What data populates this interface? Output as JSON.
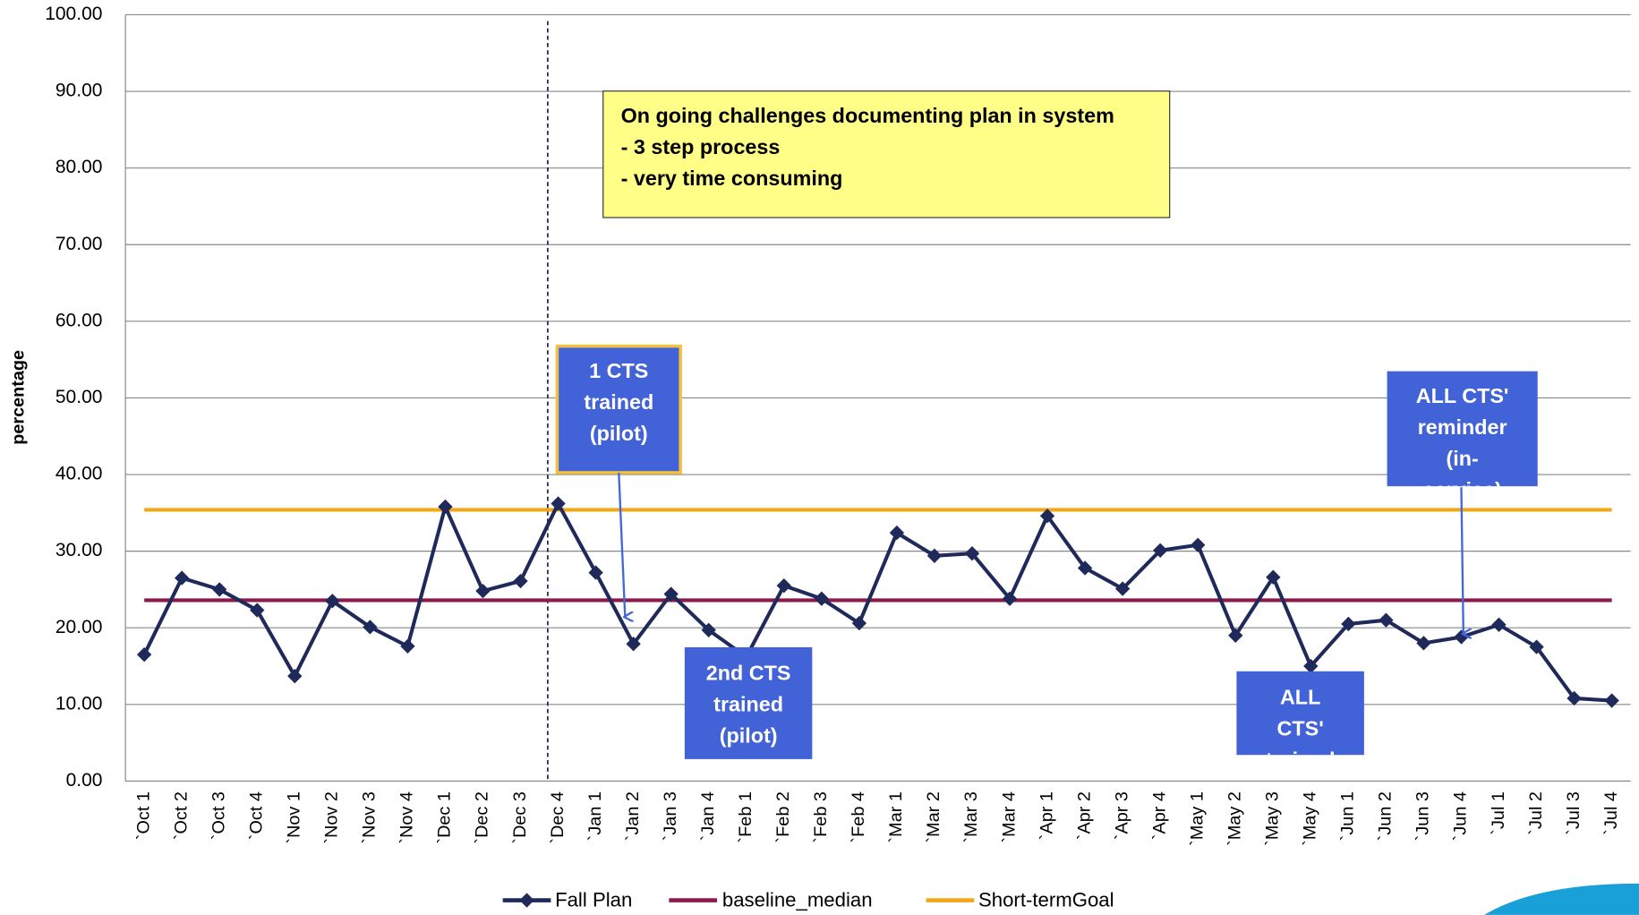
{
  "chart_data": {
    "type": "line",
    "y_label": "percentage",
    "categories": [
      "`Oct 1",
      "`Oct 2",
      "`Oct 3",
      "`Oct 4",
      "`Nov 1",
      "`Nov 2",
      "`Nov 3",
      "`Nov 4",
      "`Dec 1",
      "`Dec 2",
      "`Dec 3",
      "`Dec 4",
      "`Jan 1",
      "`Jan 2",
      "`Jan 3",
      "`Jan 4",
      "`Feb 1",
      "`Feb 2",
      "`Feb 3",
      "`Feb 4",
      "`Mar 1",
      "`Mar 2",
      "`Mar 3",
      "`Mar 4",
      "`Apr 1",
      "`Apr 2",
      "`Apr 3",
      "`Apr 4",
      "`May 1",
      "`May 2",
      "`May 3",
      "`May 4",
      "`Jun 1",
      "`Jun 2",
      "`Jun 3",
      "`Jun 4",
      "`Jul 1",
      "`Jul 2",
      "`Jul 3",
      "`Jul 4"
    ],
    "series": [
      {
        "name": "Fall Plan",
        "color": "#1f2a5a",
        "marker": "diamond",
        "values": [
          16.5,
          26.5,
          25,
          22.3,
          13.7,
          23.5,
          20.1,
          17.6,
          35.8,
          24.8,
          26.1,
          36.2,
          27.2,
          17.9,
          24.4,
          19.7,
          16.2,
          25.5,
          23.8,
          20.6,
          32.4,
          29.4,
          29.7,
          23.8,
          34.6,
          27.8,
          25.1,
          30.1,
          30.8,
          19.0,
          26.6,
          15.0,
          20.5,
          21.0,
          18.0,
          18.8,
          20.4,
          17.5,
          10.8,
          10.5
        ]
      },
      {
        "name": "baseline_median",
        "color": "#8b1a4a",
        "values": [
          23.6,
          23.6,
          23.6,
          23.6,
          23.6,
          23.6,
          23.6,
          23.6,
          23.6,
          23.6,
          23.6,
          23.6,
          23.6,
          23.6,
          23.6,
          23.6,
          23.6,
          23.6,
          23.6,
          23.6,
          23.6,
          23.6,
          23.6,
          23.6,
          23.6,
          23.6,
          23.6,
          23.6,
          23.6,
          23.6,
          23.6,
          23.6,
          23.6,
          23.6,
          23.6,
          23.6,
          23.6,
          23.6,
          23.6,
          23.6
        ]
      },
      {
        "name": "Short-termGoal",
        "color": "#f0a818",
        "values": [
          35.4,
          35.4,
          35.4,
          35.4,
          35.4,
          35.4,
          35.4,
          35.4,
          35.4,
          35.4,
          35.4,
          35.4,
          35.4,
          35.4,
          35.4,
          35.4,
          35.4,
          35.4,
          35.4,
          35.4,
          35.4,
          35.4,
          35.4,
          35.4,
          35.4,
          35.4,
          35.4,
          35.4,
          35.4,
          35.4,
          35.4,
          35.4,
          35.4,
          35.4,
          35.4,
          35.4,
          35.4,
          35.4,
          35.4,
          35.4
        ]
      }
    ],
    "ylim": [
      0,
      100
    ],
    "yticks": [
      {
        "value": 0,
        "label": "0.00"
      },
      {
        "value": 10,
        "label": "10.00"
      },
      {
        "value": 20,
        "label": "20.00"
      },
      {
        "value": 30,
        "label": "30.00"
      },
      {
        "value": 40,
        "label": "40.00"
      },
      {
        "value": 50,
        "label": "50.00"
      },
      {
        "value": 60,
        "label": "60.00"
      },
      {
        "value": 70,
        "label": "70.00"
      },
      {
        "value": 80,
        "label": "80.00"
      },
      {
        "value": 90,
        "label": "90.00"
      },
      {
        "value": 100,
        "label": "100.00"
      }
    ],
    "grid": true,
    "legend": "bottom",
    "annotations": [
      {
        "lines": [
          "On going challenges documenting plan in system",
          "- 3 step process",
          "- very time consuming"
        ]
      },
      {
        "lines": [
          "1 CTS",
          "trained",
          "(pilot)"
        ]
      },
      {
        "lines": [
          "2nd CTS",
          "trained",
          "(pilot)"
        ]
      },
      {
        "lines": [
          "ALL",
          "CTS'",
          "trained"
        ]
      },
      {
        "lines": [
          "ALL CTS'",
          "reminder",
          "(in-",
          "service)"
        ]
      }
    ]
  }
}
